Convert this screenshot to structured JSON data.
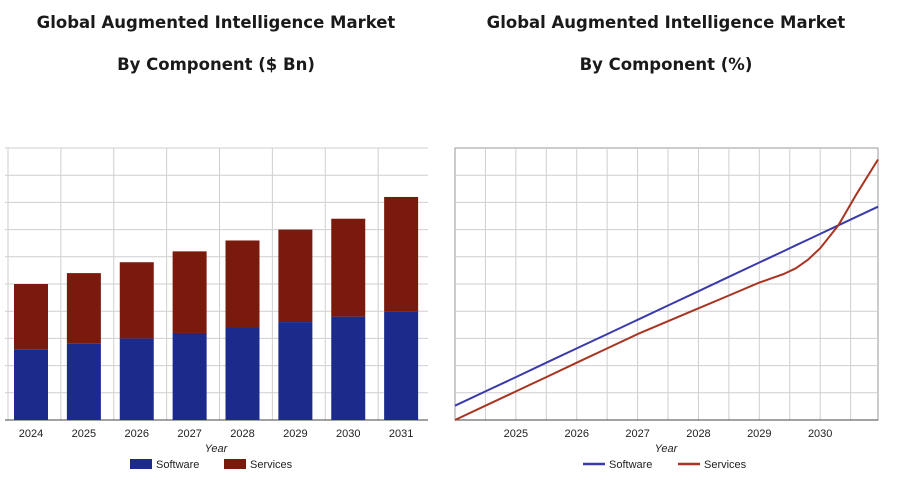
{
  "chart_data": [
    {
      "type": "bar",
      "stacked": true,
      "title": "Global Augmented Intelligence Market",
      "subtitle": "By Component ($ Bn)",
      "xlabel": "Year",
      "ylabel": "",
      "categories": [
        "2024",
        "2025",
        "2026",
        "2027",
        "2028",
        "2029",
        "2030",
        "2031"
      ],
      "series": [
        {
          "name": "Software",
          "color": "#1c2a8c",
          "values": [
            26,
            28,
            30,
            32,
            34,
            36,
            38,
            40
          ]
        },
        {
          "name": "Services",
          "color": "#7a1a0d",
          "values": [
            24,
            26,
            28,
            30,
            32,
            34,
            36,
            42
          ]
        }
      ],
      "ylim": [
        0,
        100
      ],
      "grid": true,
      "legend": "bottom"
    },
    {
      "type": "line",
      "title": "Global Augmented Intelligence Market",
      "subtitle": "By Component (%)",
      "xlabel": "Year",
      "ylabel": "",
      "x_ticks": [
        "2025",
        "2026",
        "2027",
        "2028",
        "2029",
        "2030"
      ],
      "x": [
        0,
        0.5,
        1,
        1.5,
        2,
        2.5,
        3,
        3.5,
        4,
        4.5,
        5,
        5.2,
        5.4,
        5.6,
        5.8,
        6,
        6.3,
        6.6,
        6.95
      ],
      "xlim": [
        0,
        6.95
      ],
      "series": [
        {
          "name": "Software",
          "color": "#3a3aaa",
          "values": [
            10.0,
            11.0,
            12.0,
            13.0,
            14.0,
            15.0,
            16.0,
            17.0,
            18.0,
            19.0,
            20.0,
            20.4,
            20.8,
            21.2,
            21.6,
            22.0,
            22.6,
            23.2,
            23.9
          ]
        },
        {
          "name": "Services",
          "color": "#a83422",
          "values": [
            9.0,
            10.0,
            11.0,
            12.0,
            13.0,
            14.0,
            15.0,
            15.9,
            16.8,
            17.7,
            18.6,
            18.9,
            19.2,
            19.6,
            20.2,
            21.0,
            22.6,
            24.8,
            27.2
          ]
        }
      ],
      "ylim": [
        9,
        28
      ],
      "grid": true,
      "legend": "bottom"
    }
  ]
}
